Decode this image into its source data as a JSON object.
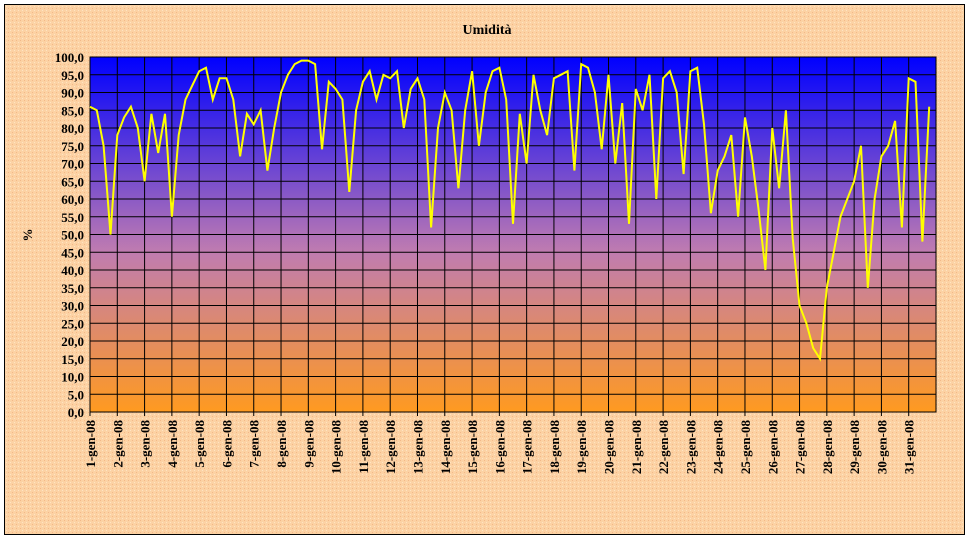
{
  "chart_data": {
    "type": "line",
    "title": "Umidità",
    "y_label": "%",
    "color": "#ffff00",
    "grid": true,
    "xlim": [
      0,
      31
    ],
    "xticks": [
      {
        "value": 0,
        "label": "1-gen-08"
      },
      {
        "value": 1,
        "label": "2-gen-08"
      },
      {
        "value": 2,
        "label": "3-gen-08"
      },
      {
        "value": 3,
        "label": "4-gen-08"
      },
      {
        "value": 4,
        "label": "5-gen-08"
      },
      {
        "value": 5,
        "label": "6-gen-08"
      },
      {
        "value": 6,
        "label": "7-gen-08"
      },
      {
        "value": 7,
        "label": "8-gen-08"
      },
      {
        "value": 8,
        "label": "9-gen-08"
      },
      {
        "value": 9,
        "label": "10-gen-08"
      },
      {
        "value": 10,
        "label": "11-gen-08"
      },
      {
        "value": 11,
        "label": "12-gen-08"
      },
      {
        "value": 12,
        "label": "13-gen-08"
      },
      {
        "value": 13,
        "label": "14-gen-08"
      },
      {
        "value": 14,
        "label": "15-gen-08"
      },
      {
        "value": 15,
        "label": "16-gen-08"
      },
      {
        "value": 16,
        "label": "17-gen-08"
      },
      {
        "value": 17,
        "label": "18-gen-08"
      },
      {
        "value": 18,
        "label": "19-gen-08"
      },
      {
        "value": 19,
        "label": "20-gen-08"
      },
      {
        "value": 20,
        "label": "21-gen-08"
      },
      {
        "value": 21,
        "label": "22-gen-08"
      },
      {
        "value": 22,
        "label": "23-gen-08"
      },
      {
        "value": 23,
        "label": "24-gen-08"
      },
      {
        "value": 24,
        "label": "25-gen-08"
      },
      {
        "value": 25,
        "label": "26-gen-08"
      },
      {
        "value": 26,
        "label": "27-gen-08"
      },
      {
        "value": 27,
        "label": "28-gen-08"
      },
      {
        "value": 28,
        "label": "29-gen-08"
      },
      {
        "value": 29,
        "label": "30-gen-08"
      },
      {
        "value": 30,
        "label": "31-gen-08"
      }
    ],
    "ylim": [
      0,
      100
    ],
    "yticks": [
      {
        "value": 0,
        "label": "0,0"
      },
      {
        "value": 5,
        "label": "5,0"
      },
      {
        "value": 10,
        "label": "10,0"
      },
      {
        "value": 15,
        "label": "15,0"
      },
      {
        "value": 20,
        "label": "20,0"
      },
      {
        "value": 25,
        "label": "25,0"
      },
      {
        "value": 30,
        "label": "30,0"
      },
      {
        "value": 35,
        "label": "35,0"
      },
      {
        "value": 40,
        "label": "40,0"
      },
      {
        "value": 45,
        "label": "45,0"
      },
      {
        "value": 50,
        "label": "50,0"
      },
      {
        "value": 55,
        "label": "55,0"
      },
      {
        "value": 60,
        "label": "60,0"
      },
      {
        "value": 65,
        "label": "65,0"
      },
      {
        "value": 70,
        "label": "70,0"
      },
      {
        "value": 75,
        "label": "75,0"
      },
      {
        "value": 80,
        "label": "80,0"
      },
      {
        "value": 85,
        "label": "85,0"
      },
      {
        "value": 90,
        "label": "90,0"
      },
      {
        "value": 95,
        "label": "95,0"
      },
      {
        "value": 100,
        "label": "100,0"
      }
    ],
    "x": [
      0,
      0.25,
      0.5,
      0.75,
      1,
      1.25,
      1.5,
      1.75,
      2,
      2.25,
      2.5,
      2.75,
      3,
      3.25,
      3.5,
      3.75,
      4,
      4.25,
      4.5,
      4.75,
      5,
      5.25,
      5.5,
      5.75,
      6,
      6.25,
      6.5,
      6.75,
      7,
      7.25,
      7.5,
      7.75,
      8,
      8.25,
      8.5,
      8.75,
      9,
      9.25,
      9.5,
      9.75,
      10,
      10.25,
      10.5,
      10.75,
      11,
      11.25,
      11.5,
      11.75,
      12,
      12.25,
      12.5,
      12.75,
      13,
      13.25,
      13.5,
      13.75,
      14,
      14.25,
      14.5,
      14.75,
      15,
      15.25,
      15.5,
      15.75,
      16,
      16.25,
      16.5,
      16.75,
      17,
      17.25,
      17.5,
      17.75,
      18,
      18.25,
      18.5,
      18.75,
      19,
      19.25,
      19.5,
      19.75,
      20,
      20.25,
      20.5,
      20.75,
      21,
      21.25,
      21.5,
      21.75,
      22,
      22.25,
      22.5,
      22.75,
      23,
      23.25,
      23.5,
      23.75,
      24,
      24.25,
      24.5,
      24.75,
      25,
      25.25,
      25.5,
      25.75,
      26,
      26.25,
      26.5,
      26.75,
      27,
      27.25,
      27.5,
      27.75,
      28,
      28.25,
      28.5,
      28.75,
      29,
      29.25,
      29.5,
      29.75,
      30,
      30.25,
      30.5,
      30.75
    ],
    "values": [
      86,
      85,
      75,
      50,
      78,
      83,
      86,
      80,
      65,
      84,
      73,
      84,
      55,
      78,
      88,
      92,
      96,
      97,
      88,
      94,
      94,
      88,
      72,
      84,
      81,
      85,
      68,
      80,
      90,
      95,
      98,
      99,
      99,
      98,
      74,
      93,
      91,
      88,
      62,
      85,
      93,
      96,
      88,
      95,
      94,
      96,
      80,
      91,
      94,
      88,
      52,
      80,
      90,
      85,
      63,
      85,
      96,
      75,
      90,
      96,
      97,
      88,
      53,
      84,
      70,
      95,
      85,
      78,
      94,
      95,
      96,
      68,
      98,
      97,
      90,
      74,
      95,
      70,
      87,
      53,
      91,
      85,
      95,
      60,
      94,
      96,
      90,
      67,
      96,
      97,
      81,
      56,
      68,
      72,
      78,
      55,
      83,
      72,
      57,
      40,
      80,
      63,
      85,
      49,
      30,
      25,
      18,
      15,
      35,
      45,
      55,
      60,
      65,
      75,
      35,
      60,
      72,
      75,
      82,
      52,
      94,
      93,
      48,
      86
    ]
  }
}
